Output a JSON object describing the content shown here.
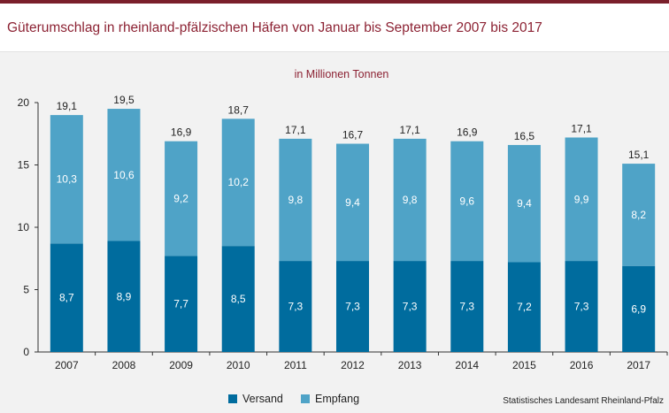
{
  "header": {
    "title": "Güterumschlag in rheinland-pfälzischen Häfen von Januar bis September 2007 bis 2017"
  },
  "source": "Statistisches Landesamt Rheinland-Pfalz",
  "colors": {
    "versand": "#006c9e",
    "empfang": "#4fa3c7",
    "title": "#8c2233"
  },
  "chart_data": {
    "type": "bar",
    "stacked": true,
    "subtitle": "in Millionen Tonnen",
    "categories": [
      "2007",
      "2008",
      "2009",
      "2010",
      "2011",
      "2012",
      "2013",
      "2014",
      "2015",
      "2016",
      "2017"
    ],
    "series": [
      {
        "name": "Versand",
        "values": [
          8.7,
          8.9,
          7.7,
          8.5,
          7.3,
          7.3,
          7.3,
          7.3,
          7.2,
          7.3,
          6.9
        ],
        "labels": [
          "8,7",
          "8,9",
          "7,7",
          "8,5",
          "7,3",
          "7,3",
          "7,3",
          "7,3",
          "7,2",
          "7,3",
          "6,9"
        ]
      },
      {
        "name": "Empfang",
        "values": [
          10.3,
          10.6,
          9.2,
          10.2,
          9.8,
          9.4,
          9.8,
          9.6,
          9.4,
          9.9,
          8.2
        ],
        "labels": [
          "10,3",
          "10,6",
          "9,2",
          "10,2",
          "9,8",
          "9,4",
          "9,8",
          "9,6",
          "9,4",
          "9,9",
          "8,2"
        ]
      }
    ],
    "totals": [
      19.1,
      19.5,
      16.9,
      18.7,
      17.1,
      16.7,
      17.1,
      16.9,
      16.5,
      17.1,
      15.1
    ],
    "total_labels": [
      "19,1",
      "19,5",
      "16,9",
      "18,7",
      "17,1",
      "16,7",
      "17,1",
      "16,9",
      "16,5",
      "17,1",
      "15,1"
    ],
    "yticks": [
      "0",
      "5",
      "10",
      "15",
      "20"
    ],
    "ylim": [
      0,
      20
    ],
    "legend": [
      "Versand",
      "Empfang"
    ],
    "legend_position": "bottom",
    "grid": false
  }
}
